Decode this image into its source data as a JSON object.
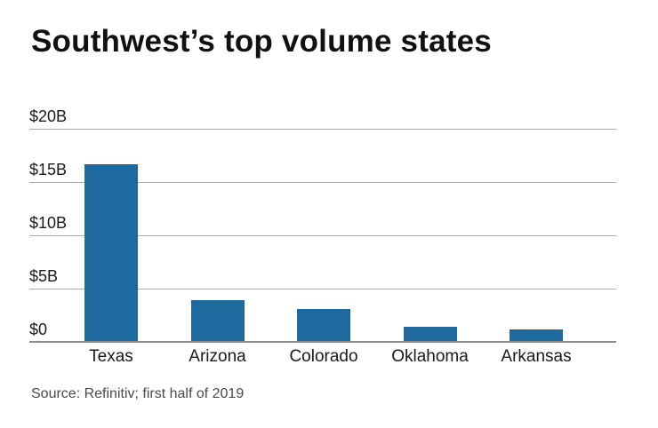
{
  "title": "Southwest’s top volume states",
  "source": "Source: Refinitiv; first half of 2019",
  "colors": {
    "bar": "#1e6a9e",
    "gridline": "#a9a9a9",
    "axis_line": "#8c8c8c",
    "title_text": "#111111",
    "tick_text": "#1a1a1a",
    "source_text": "#4a4a4a",
    "background": "#ffffff"
  },
  "chart_data": {
    "type": "bar",
    "title": "Southwest’s top volume states",
    "categories": [
      "Texas",
      "Arizona",
      "Colorado",
      "Oklahoma",
      "Arkansas"
    ],
    "values": [
      16.7,
      3.9,
      3.1,
      1.4,
      1.2
    ],
    "unit": "USD billions",
    "xlabel": "",
    "ylabel": "",
    "ylim": [
      0,
      20
    ],
    "yticks": [
      {
        "value": 20,
        "label": "$20B"
      },
      {
        "value": 15,
        "label": "$15B"
      },
      {
        "value": 10,
        "label": "$10B"
      },
      {
        "value": 5,
        "label": "$5B"
      },
      {
        "value": 0,
        "label": "$0"
      }
    ],
    "grid": true,
    "legend": false,
    "bar_color": "#1e6a9e",
    "source": "Source: Refinitiv; first half of 2019"
  }
}
